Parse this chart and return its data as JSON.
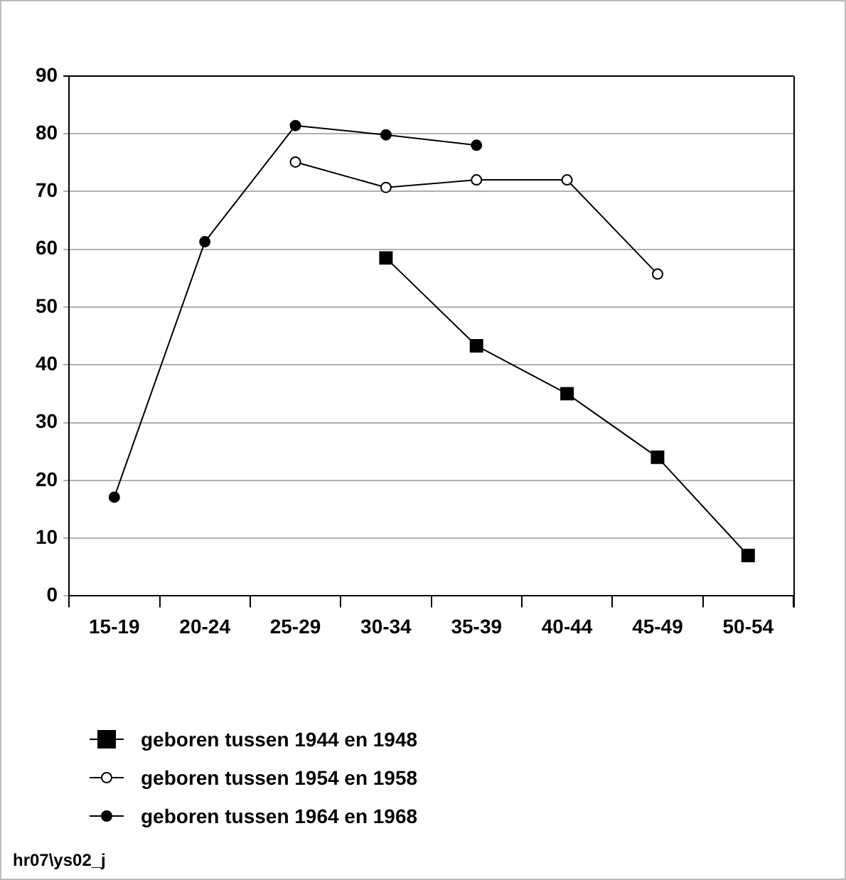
{
  "chart_data": {
    "type": "line",
    "categories": [
      "15-19",
      "20-24",
      "25-29",
      "30-34",
      "35-39",
      "40-44",
      "45-49",
      "50-54"
    ],
    "series": [
      {
        "name": "geboren tussen 1944 en 1948",
        "color": "#000000",
        "marker": "square",
        "values": [
          null,
          null,
          null,
          58.5,
          43.3,
          35.0,
          24.0,
          7.0
        ]
      },
      {
        "name": "geboren tussen 1954 en 1958",
        "color": "#000000",
        "marker": "circle",
        "values": [
          null,
          null,
          75.1,
          70.7,
          72.0,
          72.0,
          55.7,
          null
        ]
      },
      {
        "name": "geboren tussen 1964 en 1968",
        "color": "#000000",
        "marker": "circle",
        "values": [
          17.1,
          61.3,
          81.4,
          79.8,
          78.0,
          null,
          null,
          null
        ]
      }
    ],
    "ylim": [
      0,
      90
    ],
    "yticks": [
      0,
      10,
      20,
      30,
      40,
      50,
      60,
      70,
      80,
      90
    ],
    "grid": "y",
    "legend": "bottom left",
    "line_style": "solid",
    "annotations": [
      "hr07\\ys02_j"
    ]
  }
}
